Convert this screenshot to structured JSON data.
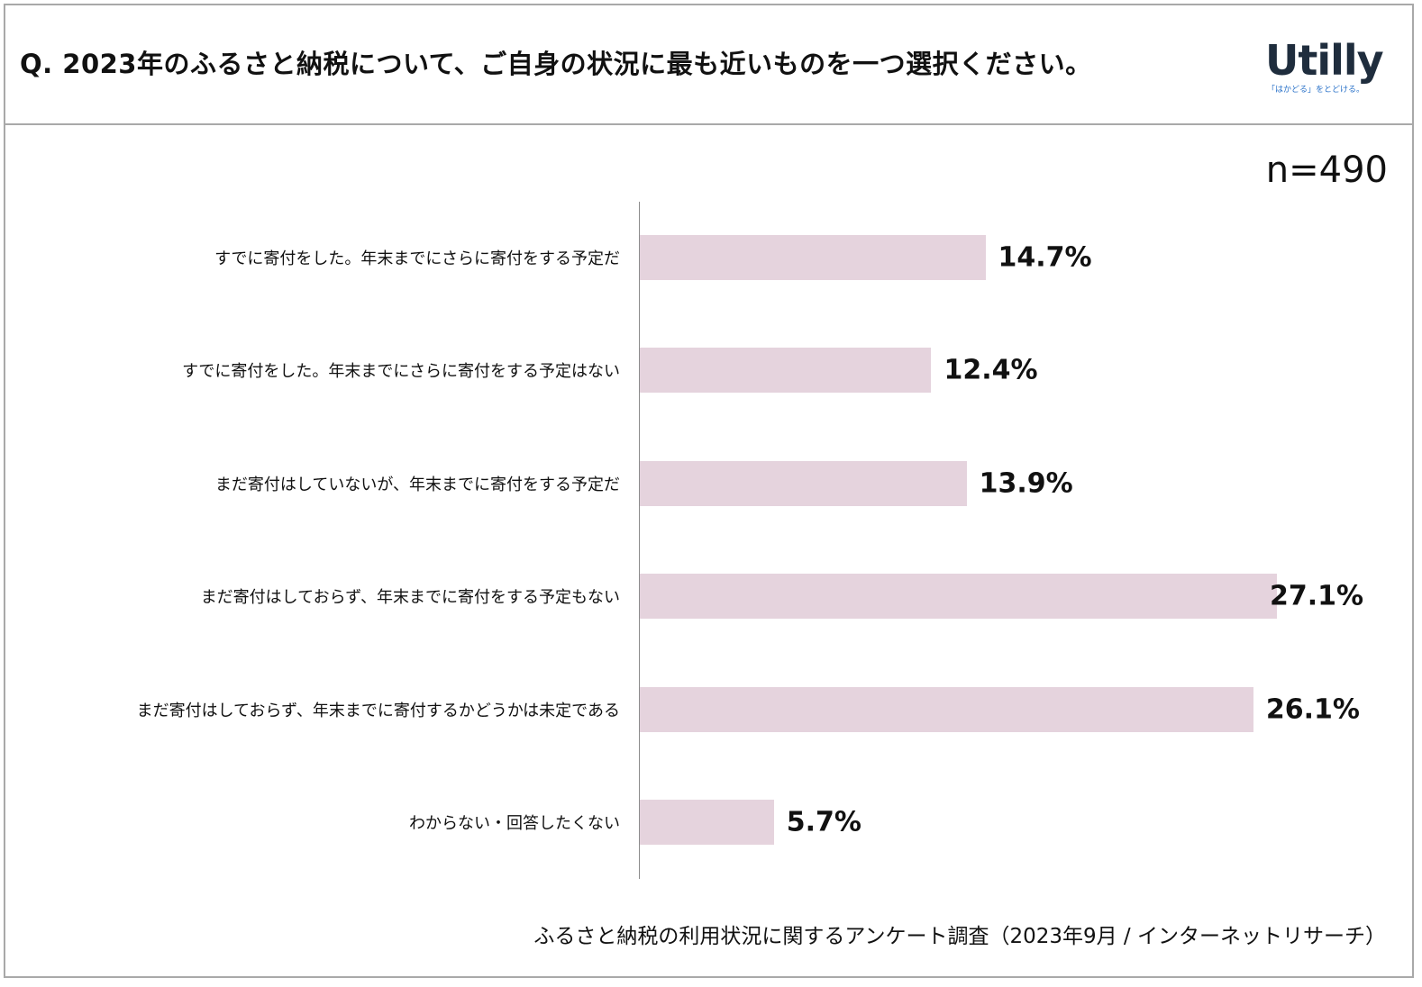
{
  "header": {
    "question": "Q. 2023年のふるさと納税について、ご自身の状況に最も近いものを一つ選択ください。",
    "logo_text": "Utilly",
    "logo_tagline": "「はかどる」をとどける。"
  },
  "sample_size": "n=490",
  "chart_data": {
    "type": "bar",
    "orientation": "horizontal",
    "categories": [
      "すでに寄付をした。年末までにさらに寄付をする予定だ",
      "すでに寄付をした。年末までにさらに寄付をする予定はない",
      "まだ寄付はしていないが、年末までに寄付をする予定だ",
      "まだ寄付はしておらず、年末までに寄付をする予定もない",
      "まだ寄付はしておらず、年末までに寄付するかどうかは未定である",
      "わからない・回答したくない"
    ],
    "values": [
      14.7,
      12.4,
      13.9,
      27.1,
      26.1,
      5.7
    ],
    "value_labels": [
      "14.7%",
      "12.4%",
      "13.9%",
      "27.1%",
      "26.1%",
      "5.7%"
    ],
    "unit": "%",
    "xlim": [
      0,
      27.1
    ],
    "bar_color": "#e5d3dd",
    "grid": false,
    "legend": "none"
  },
  "source": "ふるさと納税の利用状況に関するアンケート調査（2023年9月 / インターネットリサーチ）"
}
